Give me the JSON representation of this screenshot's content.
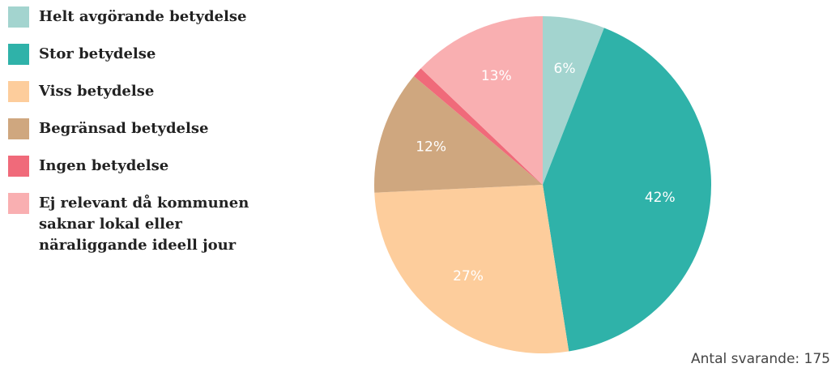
{
  "chart_data": {
    "type": "pie",
    "categories": [
      "Helt avgörande betydelse",
      "Stor betydelse",
      "Viss betydelse",
      "Begränsad betydelse",
      "Ingen betydelse",
      "Ej relevant då kommunen saknar lokal eller näraliggande ideell jour"
    ],
    "values": [
      6,
      42,
      27,
      12,
      1,
      13
    ],
    "value_labels": [
      "6%",
      "42%",
      "27%",
      "12%",
      null,
      "13%"
    ],
    "colors": [
      "#a3d4cf",
      "#2fb2a9",
      "#fdcd9c",
      "#cfa77f",
      "#f06a7a",
      "#f9afb1"
    ],
    "note": "Antal svarande: 175"
  }
}
